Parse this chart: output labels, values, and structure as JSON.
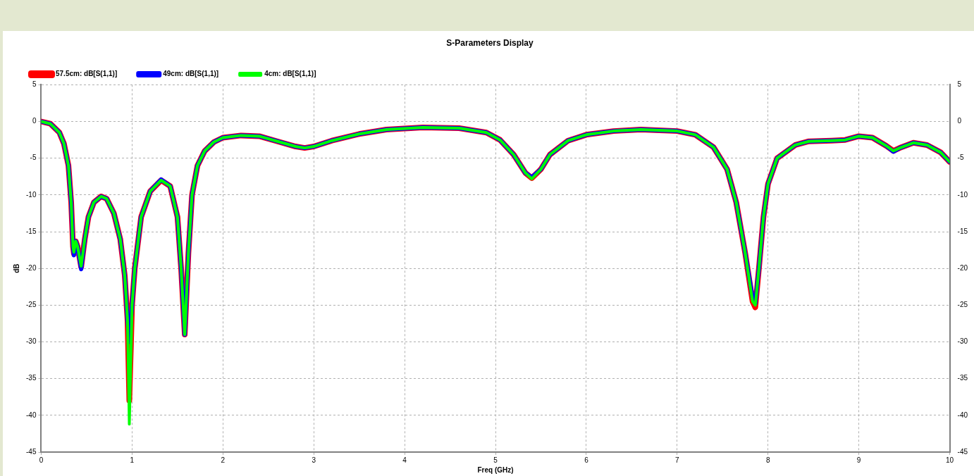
{
  "chart_data": {
    "type": "line",
    "title": "S-Parameters Display",
    "xlabel": "Freq (GHz)",
    "ylabel": "dB",
    "x": [
      0,
      0.1,
      0.2,
      0.25,
      0.3,
      0.33,
      0.35,
      0.36,
      0.38,
      0.4,
      0.44,
      0.48,
      0.52,
      0.58,
      0.66,
      0.72,
      0.8,
      0.87,
      0.92,
      0.95,
      0.97,
      1.0,
      1.03,
      1.1,
      1.2,
      1.32,
      1.42,
      1.5,
      1.54,
      1.58,
      1.62,
      1.66,
      1.72,
      1.8,
      1.9,
      2.0,
      2.2,
      2.4,
      2.6,
      2.8,
      2.9,
      3.0,
      3.2,
      3.5,
      3.8,
      4.2,
      4.6,
      4.9,
      5.05,
      5.2,
      5.33,
      5.4,
      5.5,
      5.6,
      5.8,
      6.0,
      6.3,
      6.6,
      7.0,
      7.2,
      7.4,
      7.55,
      7.65,
      7.75,
      7.83,
      7.86,
      7.9,
      7.95,
      8.0,
      8.1,
      8.3,
      8.45,
      8.7,
      8.85,
      9.0,
      9.15,
      9.3,
      9.38,
      9.45,
      9.6,
      9.75,
      9.9,
      10
    ],
    "series": [
      {
        "name": "57.5cm: dB[S(1,1)]",
        "color": "#ff0000",
        "values": [
          0,
          -0.3,
          -1.5,
          -3,
          -6,
          -11,
          -17,
          -18,
          -16.3,
          -17,
          -19.8,
          -16,
          -13,
          -11,
          -10.2,
          -10.5,
          -12.5,
          -16,
          -21,
          -27,
          -38,
          -25,
          -20,
          -13,
          -9.5,
          -8,
          -8.8,
          -13,
          -20,
          -29,
          -18,
          -10,
          -6,
          -4,
          -2.8,
          -2.2,
          -1.9,
          -2,
          -2.7,
          -3.4,
          -3.6,
          -3.4,
          -2.6,
          -1.7,
          -1.1,
          -0.8,
          -0.9,
          -1.5,
          -2.5,
          -4.5,
          -7,
          -7.7,
          -6.5,
          -4.5,
          -2.6,
          -1.8,
          -1.3,
          -1.1,
          -1.3,
          -1.8,
          -3.5,
          -6.5,
          -11,
          -18,
          -24.5,
          -25.3,
          -20,
          -13,
          -8.5,
          -5,
          -3.2,
          -2.7,
          -2.6,
          -2.5,
          -2,
          -2.2,
          -3.3,
          -4,
          -3.6,
          -2.9,
          -3.2,
          -4.2,
          -5.5
        ]
      },
      {
        "name": "49cm: dB[S(1,1)]",
        "color": "#0000ff",
        "values": [
          0,
          -0.3,
          -1.5,
          -3,
          -6,
          -11,
          -17,
          -18.2,
          -16.3,
          -17,
          -20.1,
          -16,
          -13,
          -11,
          -10.2,
          -10.5,
          -12.5,
          -16,
          -21,
          -27,
          -30,
          -25,
          -20,
          -13,
          -9.5,
          -7.9,
          -8.8,
          -13,
          -20,
          -29,
          -18,
          -10,
          -6,
          -4,
          -2.8,
          -2.2,
          -1.9,
          -2,
          -2.7,
          -3.4,
          -3.6,
          -3.4,
          -2.6,
          -1.7,
          -1.1,
          -0.8,
          -0.9,
          -1.5,
          -2.5,
          -4.5,
          -7,
          -7.6,
          -6.5,
          -4.5,
          -2.6,
          -1.8,
          -1.3,
          -1.1,
          -1.3,
          -1.8,
          -3.5,
          -6.5,
          -11,
          -18,
          -24,
          -24.8,
          -20,
          -13,
          -8.5,
          -5,
          -3.2,
          -2.7,
          -2.6,
          -2.5,
          -2,
          -2.2,
          -3.3,
          -4.1,
          -3.6,
          -2.9,
          -3.2,
          -4.2,
          -5.5
        ]
      },
      {
        "name": "4cm: dB[S(1,1)]",
        "color": "#00ff00",
        "values": [
          0,
          -0.3,
          -1.5,
          -3,
          -6,
          -11,
          -17,
          -17.8,
          -16.3,
          -17,
          -19.7,
          -16,
          -13,
          -11,
          -10.2,
          -10.5,
          -12.5,
          -16,
          -21,
          -27,
          -41.2,
          -25,
          -20,
          -13,
          -9.5,
          -8,
          -8.8,
          -13,
          -20,
          -29,
          -18,
          -10,
          -6,
          -4,
          -2.8,
          -2.2,
          -1.9,
          -2,
          -2.7,
          -3.4,
          -3.6,
          -3.4,
          -2.6,
          -1.7,
          -1.1,
          -0.8,
          -0.9,
          -1.5,
          -2.5,
          -4.5,
          -7,
          -7.8,
          -6.5,
          -4.5,
          -2.6,
          -1.8,
          -1.3,
          -1.1,
          -1.3,
          -1.8,
          -3.5,
          -6.5,
          -11,
          -18,
          -24.5,
          -25,
          -20,
          -13,
          -8.5,
          -5,
          -3.2,
          -2.7,
          -2.6,
          -2.5,
          -2,
          -2.2,
          -3.3,
          -4,
          -3.6,
          -2.9,
          -3.2,
          -4.2,
          -5.5
        ]
      }
    ],
    "xlim": [
      0,
      10
    ],
    "xticks": [
      0,
      1,
      2,
      3,
      4,
      5,
      6,
      7,
      8,
      9,
      10
    ],
    "ylim": [
      -45,
      5
    ],
    "yticks": [
      -45,
      -40,
      -35,
      -30,
      -25,
      -20,
      -15,
      -10,
      -5,
      0,
      5
    ],
    "y2lim": [
      -45,
      5
    ],
    "y2ticks": [
      -45,
      -40,
      -35,
      -30,
      -25,
      -20,
      -15,
      -10,
      -5,
      0,
      5
    ],
    "grid": true,
    "legend": "top left",
    "line_style": "solid"
  }
}
